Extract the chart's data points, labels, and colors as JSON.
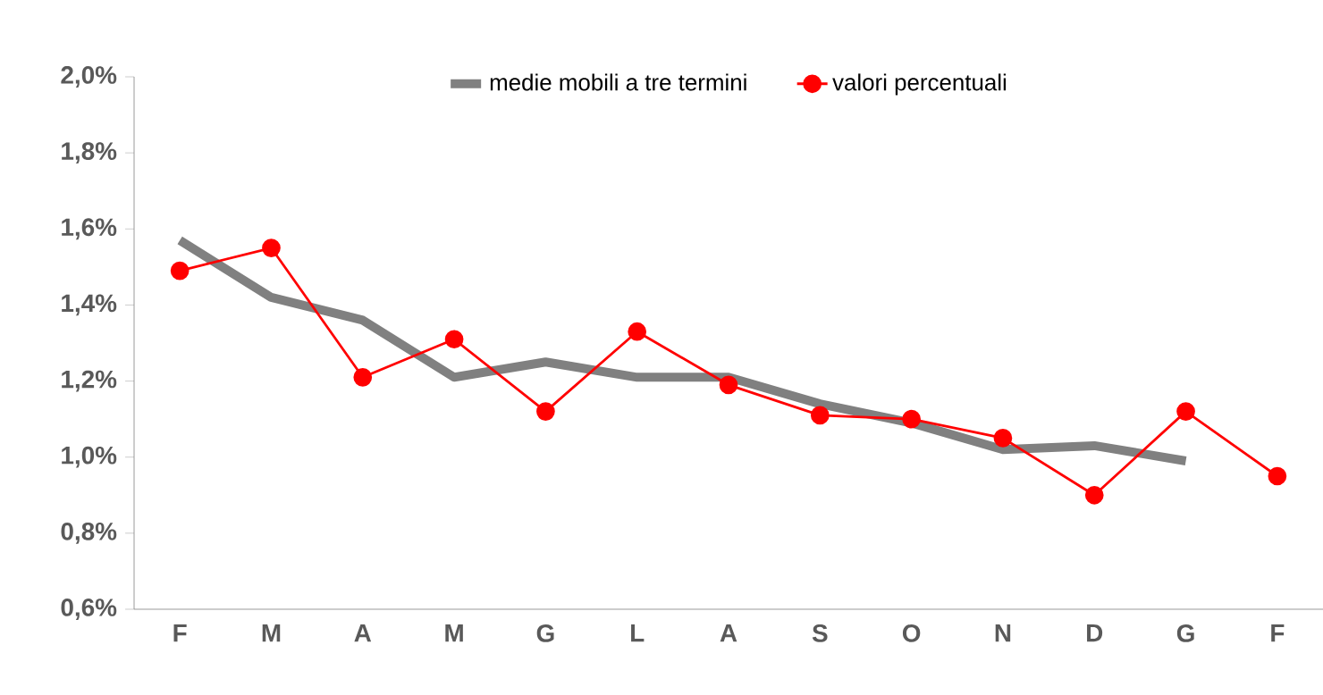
{
  "chart_data": {
    "type": "line",
    "categories": [
      "F",
      "M",
      "A",
      "M",
      "G",
      "L",
      "A",
      "S",
      "O",
      "N",
      "D",
      "G",
      "F"
    ],
    "series": [
      {
        "name": "medie mobili a tre termini",
        "color": "#808080",
        "marker": "none",
        "values": [
          1.57,
          1.42,
          1.36,
          1.21,
          1.25,
          1.21,
          1.21,
          1.14,
          1.09,
          1.02,
          1.03,
          0.99,
          null
        ]
      },
      {
        "name": "valori percentuali",
        "color": "#ff0000",
        "marker": "circle",
        "values": [
          1.49,
          1.55,
          1.21,
          1.31,
          1.12,
          1.33,
          1.19,
          1.11,
          1.1,
          1.05,
          0.9,
          1.12,
          0.95
        ]
      }
    ],
    "ylim": [
      0.6,
      2.0
    ],
    "yticks": [
      {
        "value": 0.6,
        "label": "0,6%"
      },
      {
        "value": 0.8,
        "label": "0,8%"
      },
      {
        "value": 1.0,
        "label": "1,0%"
      },
      {
        "value": 1.2,
        "label": "1,2%"
      },
      {
        "value": 1.4,
        "label": "1,4%"
      },
      {
        "value": 1.6,
        "label": "1,6%"
      },
      {
        "value": 1.8,
        "label": "1,8%"
      },
      {
        "value": 2.0,
        "label": "2,0%"
      }
    ],
    "grid": false,
    "legend": "top",
    "line_style": "solid"
  }
}
